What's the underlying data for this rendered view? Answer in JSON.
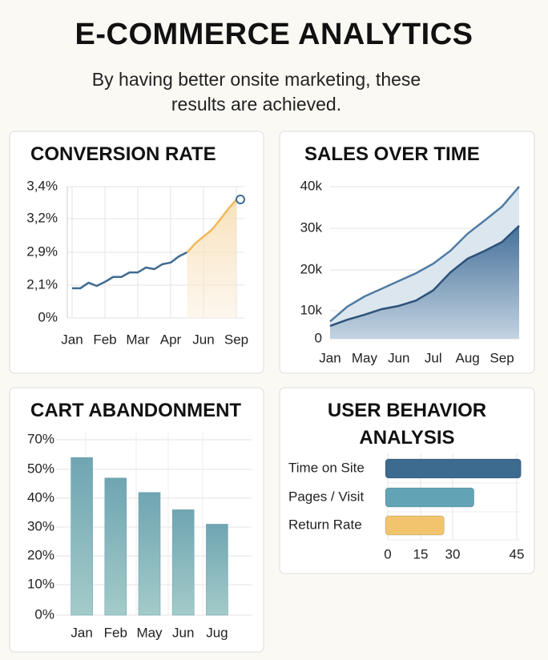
{
  "header": {
    "title": "E-COMMERCE ANALYTICS",
    "subtitle": "By having better onsite marketing, these results are achieved."
  },
  "chart_data": [
    {
      "type": "line",
      "title": "CONVERSION RATE",
      "categories": [
        "Jan",
        null,
        null,
        null,
        "Feb",
        null,
        null,
        null,
        "Mar",
        null,
        null,
        null,
        "Apr",
        null,
        null,
        null,
        "Jun",
        null,
        null,
        null,
        "Sep"
      ],
      "series": [
        {
          "color": "#3f6b91",
          "values": [
            1.9,
            1.9,
            2.16,
            2.05,
            2.18,
            2.3,
            2.3,
            2.41,
            2.41,
            2.53,
            2.49,
            2.61,
            2.65,
            2.8,
            2.9,
            null,
            null,
            null,
            null,
            null,
            null
          ]
        },
        {
          "color": "#f0b95a",
          "area": true,
          "values": [
            null,
            null,
            null,
            null,
            null,
            null,
            null,
            null,
            null,
            null,
            null,
            null,
            null,
            null,
            2.9,
            2.98,
            3.04,
            3.1,
            3.19,
            3.26,
            3.32
          ]
        }
      ],
      "ylim": [
        0,
        3.4
      ],
      "yticks": [
        {
          "value": 0,
          "label": "0%"
        },
        {
          "value": 2.1,
          "label": "2,1%"
        },
        {
          "value": 2.9,
          "label": "2,9%"
        },
        {
          "value": 3.2,
          "label": "3,2%"
        },
        {
          "value": 3.4,
          "label": "3,4%"
        }
      ],
      "grid": true
    },
    {
      "type": "area",
      "title": "SALES OVER TIME",
      "categories": [
        "Jan",
        null,
        "May",
        null,
        "Jun",
        null,
        "Jul",
        null,
        "Aug",
        null,
        "Sep",
        null
      ],
      "series": [
        {
          "color": "#4f7ba3",
          "values": [
            6200,
            11000,
            13500,
            15400,
            17300,
            19200,
            21500,
            24600,
            28700,
            31900,
            35200,
            40000
          ]
        },
        {
          "color": "#2d527a",
          "values": [
            4600,
            6800,
            8600,
            10400,
            11200,
            12500,
            15000,
            19400,
            22700,
            24600,
            26700,
            30600
          ]
        }
      ],
      "ylim": [
        0,
        40000
      ],
      "yticks": [
        0,
        {
          "value": 10000,
          "label": "10k"
        },
        {
          "value": 20000,
          "label": "20k"
        },
        {
          "value": 30000,
          "label": "30k"
        },
        {
          "value": 40000,
          "label": "40k"
        }
      ],
      "grid": true
    },
    {
      "type": "bar",
      "title": "CART ABANDONMENT",
      "categories": [
        "Jan",
        "Feb",
        "May",
        "Jun",
        "Jug"
      ],
      "values": [
        58,
        47,
        42,
        36,
        31
      ],
      "color": "#6fa5b2",
      "ylim": [
        0,
        70
      ],
      "yticks": [
        {
          "value": 0,
          "label": "0%"
        },
        {
          "value": 10,
          "label": "10%"
        },
        {
          "value": 20,
          "label": "20%"
        },
        {
          "value": 30,
          "label": "30%"
        },
        {
          "value": 40,
          "label": "40%"
        },
        {
          "value": 50,
          "label": "50%"
        },
        {
          "value": 70,
          "label": "70%"
        }
      ],
      "grid": true
    },
    {
      "type": "hbar",
      "title": "USER BEHAVIOR ANALYSIS",
      "categories": [
        "Time on Site",
        "Pages / Visit",
        "Return Rate"
      ],
      "values": [
        46,
        35,
        26
      ],
      "colors": [
        "#3d6a8f",
        "#62a3b6",
        "#f2c46d"
      ],
      "xlim": [
        0,
        46
      ],
      "xticks": [
        0,
        15,
        30,
        45
      ],
      "grid": true
    }
  ]
}
